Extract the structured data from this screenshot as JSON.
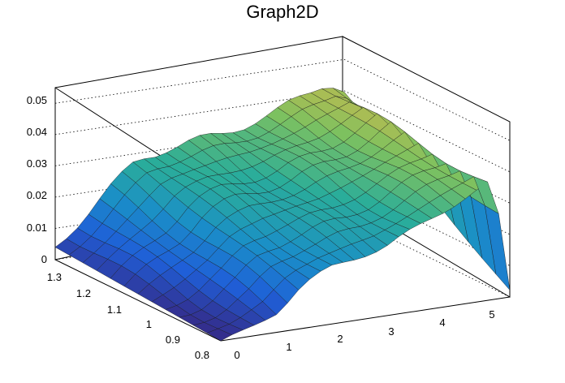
{
  "chart_data": {
    "type": "surface",
    "title": "Graph2D",
    "xlabel": "",
    "ylabel": "",
    "zlabel": "",
    "xlim": [
      0,
      5.3
    ],
    "ylim": [
      0.8,
      1.3
    ],
    "zlim": [
      0,
      0.055
    ],
    "x_ticks": [
      "0",
      "1",
      "2",
      "3",
      "4",
      "5"
    ],
    "y_ticks": [
      "0.8",
      "0.9",
      "1",
      "1.1",
      "1.2",
      "1.3"
    ],
    "z_ticks": [
      "0",
      "0.01",
      "0.02",
      "0.03",
      "0.04",
      "0.05"
    ],
    "colormap": [
      "#352a87",
      "#1f5fd8",
      "#1a8ec8",
      "#2aad9a",
      "#7ec15f",
      "#d3b94a",
      "#f5e62c"
    ],
    "grid": true,
    "surface_z_by_x": {
      "x": [
        0,
        0.5,
        1.0,
        1.5,
        2.0,
        2.5,
        3.0,
        3.5,
        4.0,
        4.5,
        5.0,
        5.3
      ],
      "z_high_y": [
        0.004,
        0.012,
        0.02,
        0.028,
        0.03,
        0.031,
        0.032,
        0.034,
        0.036,
        0.04,
        0.044,
        0.04
      ],
      "z_low_y": [
        0.0,
        0.002,
        0.006,
        0.014,
        0.018,
        0.02,
        0.022,
        0.026,
        0.03,
        0.034,
        0.038,
        0.002
      ]
    }
  }
}
